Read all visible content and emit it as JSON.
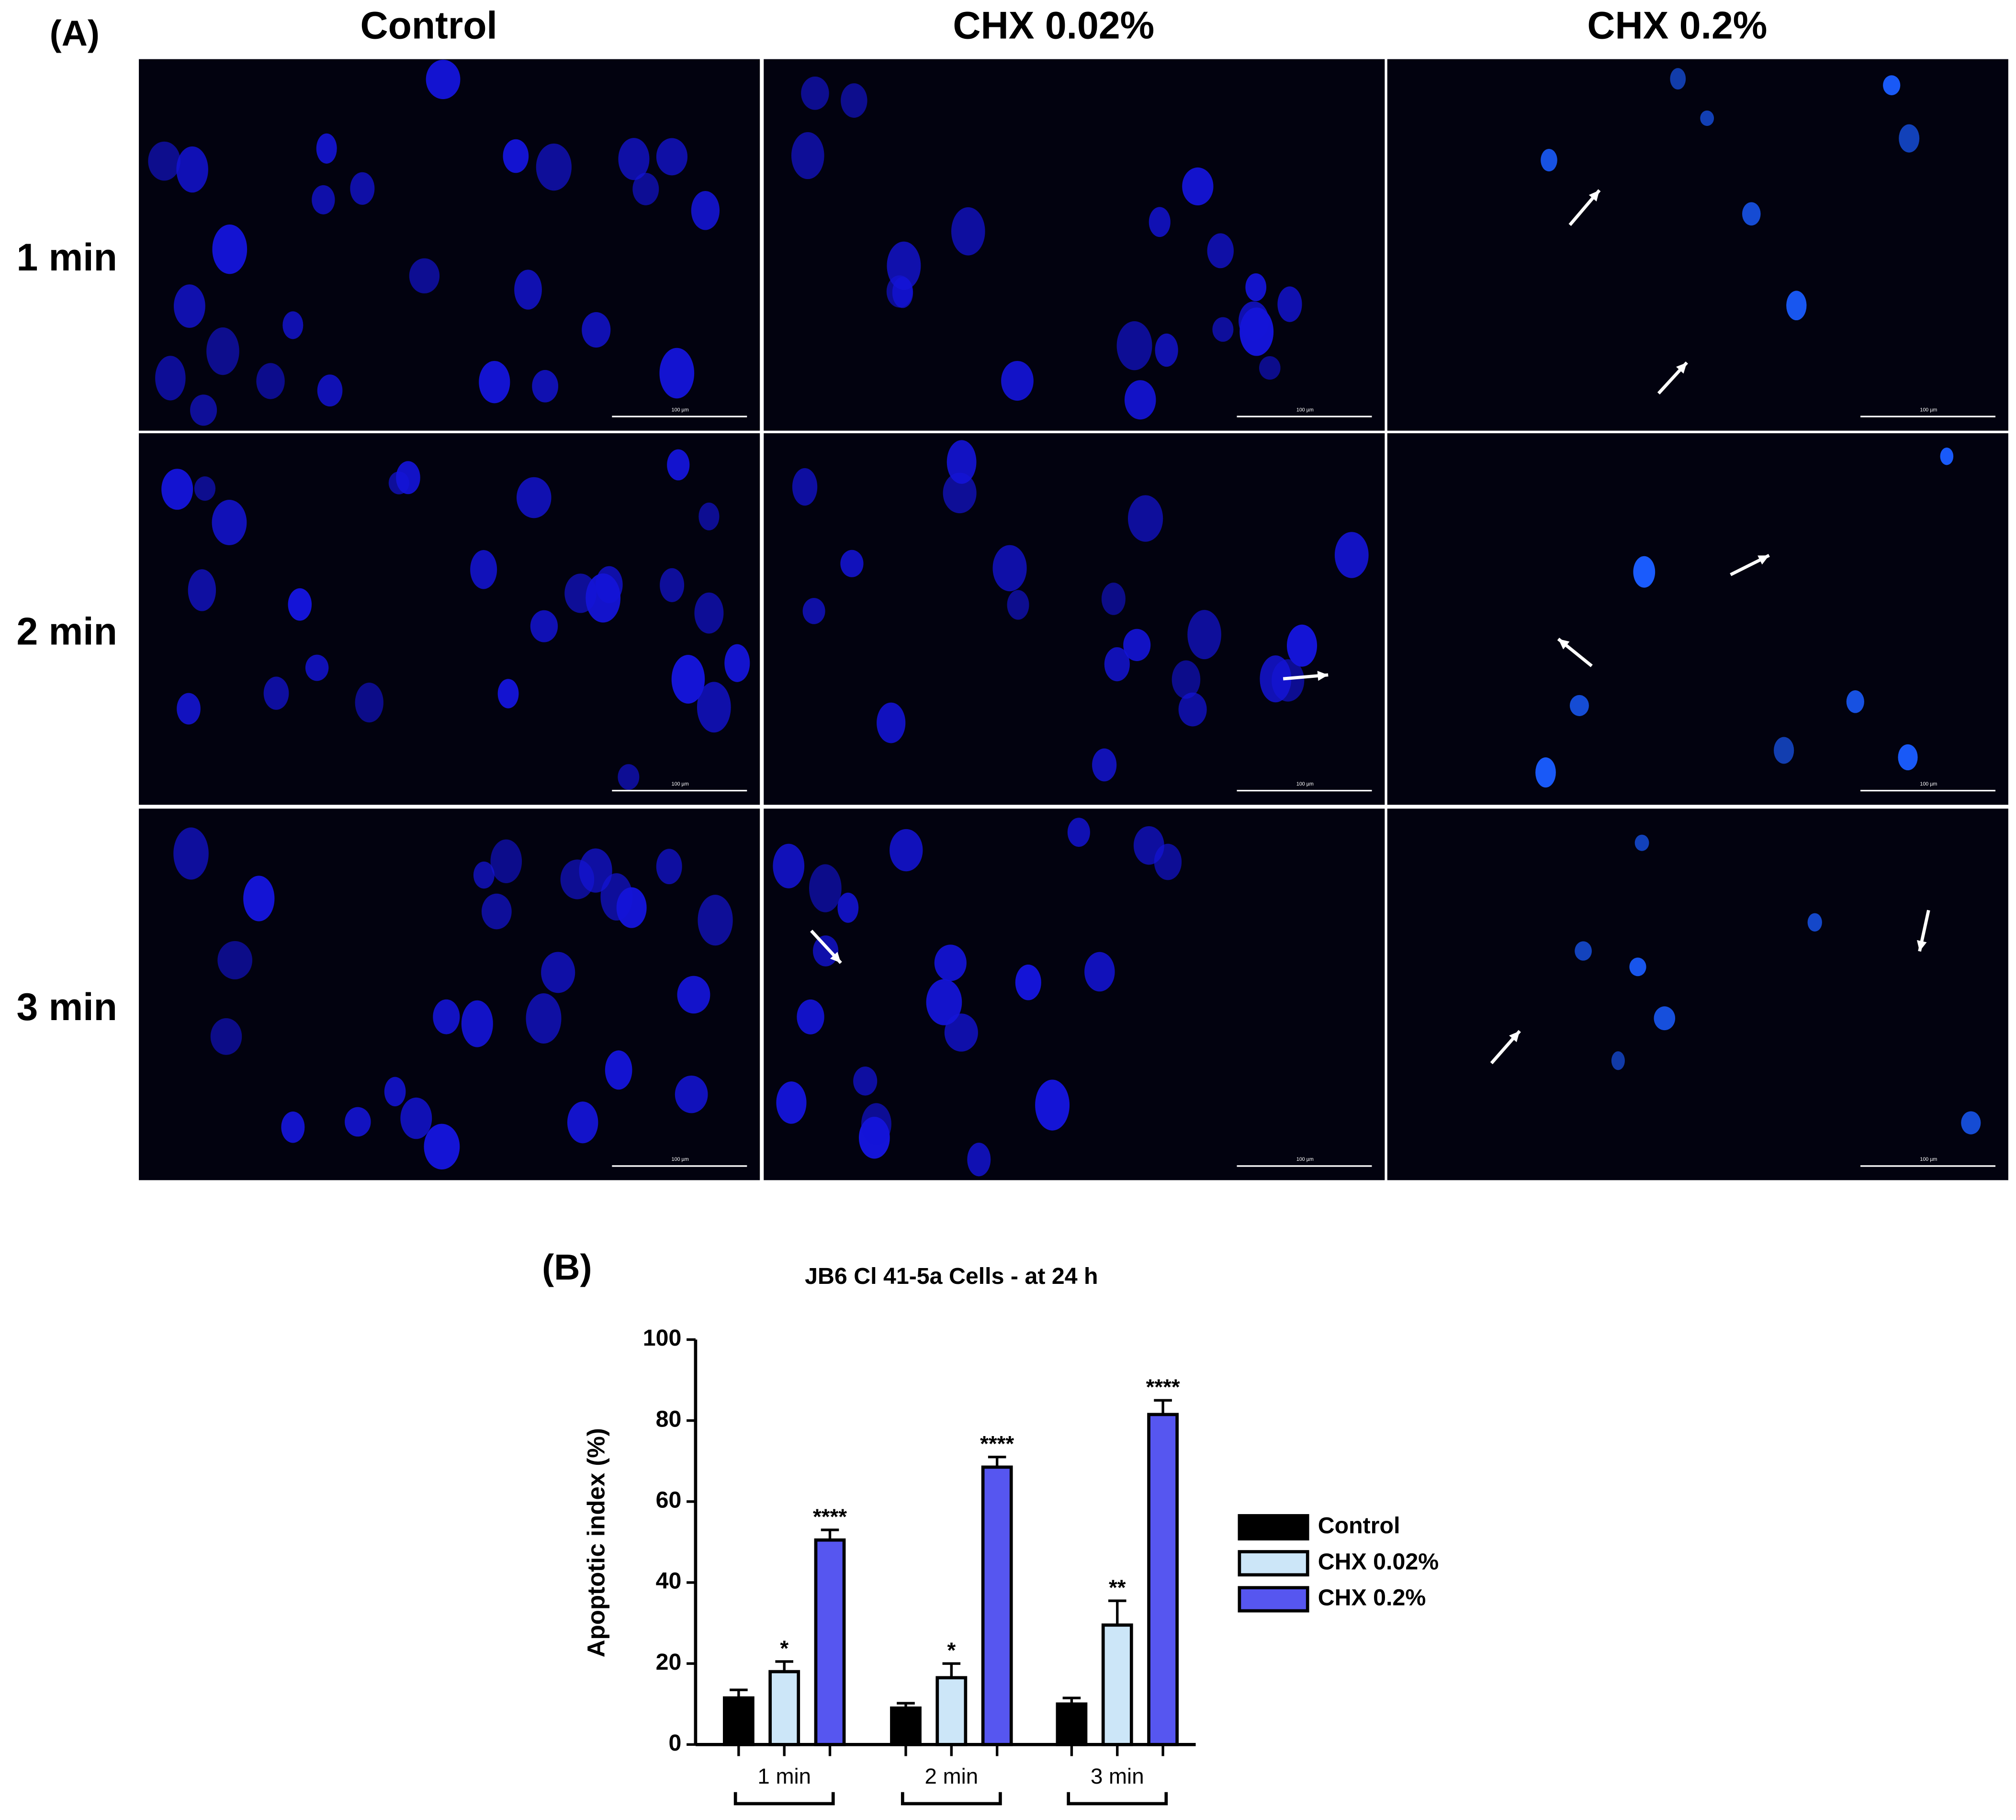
{
  "panel_a": {
    "label": "(A)",
    "columns": [
      "Control",
      "CHX 0.02%",
      "CHX 0.2%"
    ],
    "rows": [
      "1 min",
      "2 min",
      "3 min"
    ],
    "scale_bar_label": "100 µm"
  },
  "chart_data": {
    "type": "bar",
    "panel_label": "(B)",
    "title": "JB6 Cl 41-5a Cells - at 24 h",
    "y_label": "Apoptotic index (%)",
    "categories": [
      "1 min",
      "2 min",
      "3 min"
    ],
    "series": [
      {
        "name": "Control",
        "color": "#000000",
        "values": [
          11.5,
          9,
          10
        ],
        "errors": [
          2,
          1.2,
          1.5
        ],
        "annotations": [
          null,
          null,
          null
        ]
      },
      {
        "name": "CHX 0.02%",
        "color": "#cce6f8",
        "values": [
          18,
          16.5,
          29.5
        ],
        "errors": [
          2.5,
          3.5,
          6
        ],
        "annotations": [
          "*",
          "*",
          "**"
        ]
      },
      {
        "name": "CHX 0.2%",
        "color": "#5656f0",
        "values": [
          50.5,
          68.5,
          81.5
        ],
        "errors": [
          2.5,
          2.5,
          3.5
        ],
        "annotations": [
          "****",
          "****",
          "****"
        ]
      }
    ],
    "ylim": [
      0,
      100
    ],
    "yticks": [
      0,
      20,
      40,
      60,
      80,
      100
    ]
  }
}
